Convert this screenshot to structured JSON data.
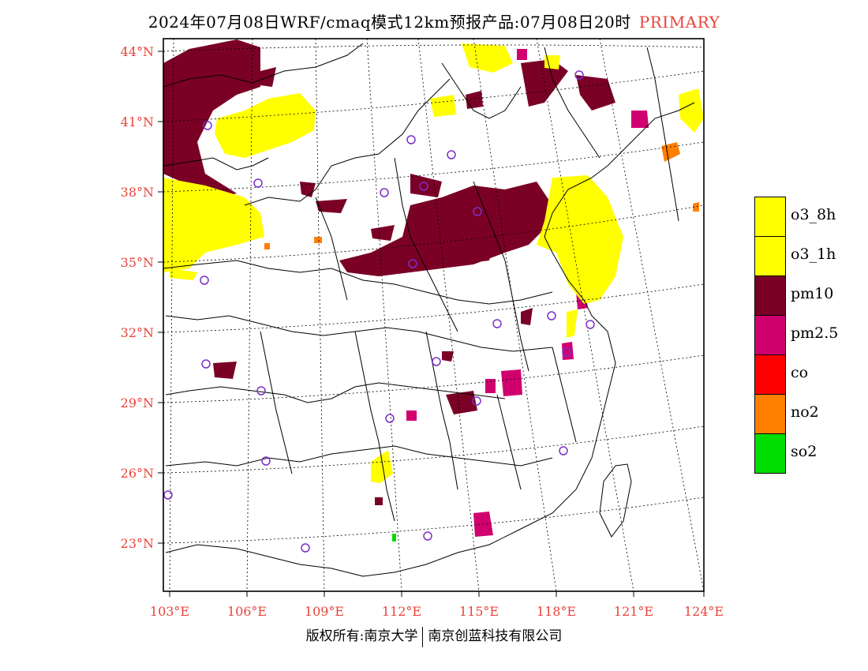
{
  "title": {
    "main": "2024年07月08日WRF/cmaq模式12km预报产品:07月08日20时",
    "tag": "PRIMARY"
  },
  "latitudes": [
    "44°N",
    "41°N",
    "38°N",
    "35°N",
    "32°N",
    "29°N",
    "26°N",
    "23°N"
  ],
  "longitudes": [
    "103°E",
    "106°E",
    "109°E",
    "112°E",
    "115°E",
    "118°E",
    "121°E",
    "124°E"
  ],
  "legend": [
    {
      "label": "o3_8h",
      "color": "#ffff00"
    },
    {
      "label": "o3_1h",
      "color": "#ffff00"
    },
    {
      "label": "pm10",
      "color": "#7a0026"
    },
    {
      "label": "pm2.5",
      "color": "#d0006f"
    },
    {
      "label": "co",
      "color": "#ff0000"
    },
    {
      "label": "no2",
      "color": "#ff7f00"
    },
    {
      "label": "so2",
      "color": "#00dd00"
    }
  ],
  "footer": {
    "left": "版权所有:南京大学",
    "right": "南京创蓝科技有限公司"
  }
}
